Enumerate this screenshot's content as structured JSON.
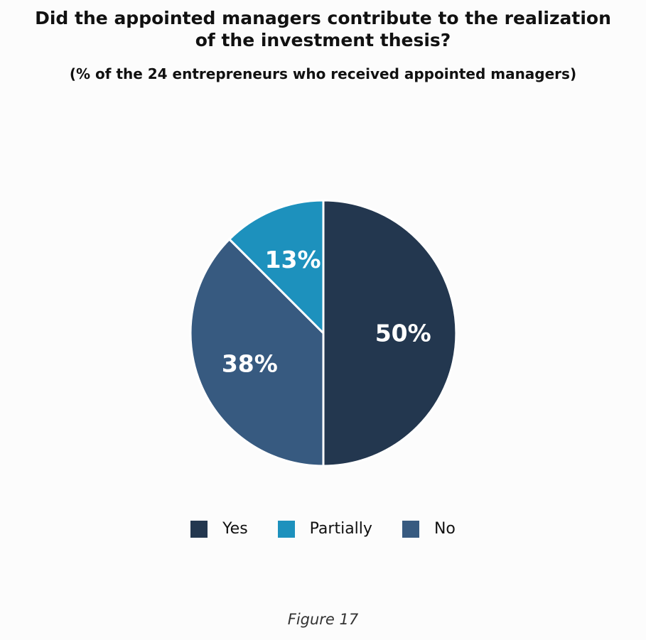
{
  "chart_data": {
    "type": "pie",
    "title": "Did the appointed managers contribute to the realization\nof the investment thesis?",
    "subtitle": "(% of the 24 entrepreneurs who received appointed managers)",
    "slices": [
      {
        "label": "Yes",
        "value": 50,
        "display": "50%",
        "color": "#23374f"
      },
      {
        "label": "No",
        "value": 37.5,
        "display": "38%",
        "color": "#375a80"
      },
      {
        "label": "Partially",
        "value": 12.5,
        "display": "13%",
        "color": "#1d91bd"
      }
    ],
    "legend": {
      "placement": "bottom-center",
      "order": [
        "Yes",
        "Partially",
        "No"
      ]
    },
    "direction": "clockwise from top"
  },
  "caption": "Figure 17"
}
